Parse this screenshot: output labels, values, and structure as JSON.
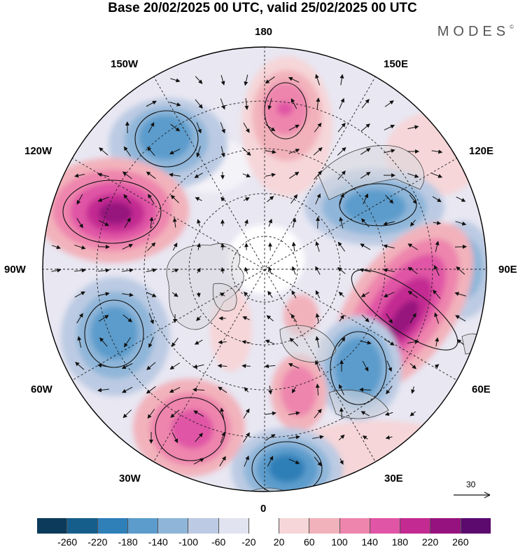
{
  "header": {
    "title": "Base 20/02/2025 00 UTC, valid 25/02/2025 00 UTC",
    "brand": "MODES"
  },
  "longitude_labels": {
    "top": "180",
    "bottom": "0",
    "left": "90W",
    "right": "90E",
    "tl1": "150W",
    "tl2": "120W",
    "tr1": "150E",
    "tr2": "120E",
    "bl1": "60W",
    "bl2": "30W",
    "br1": "60E",
    "br2": "30E"
  },
  "reference_vector": {
    "label": "30"
  },
  "colorbar": {
    "colors": [
      "#0b3a5a",
      "#155e8c",
      "#2f7fb8",
      "#5b9ccc",
      "#8fb6d9",
      "#bccbe3",
      "#e2e3f0",
      "#ffffff",
      "#f6d6d8",
      "#f2b2bb",
      "#ee85ad",
      "#e055a5",
      "#c32a92",
      "#96127e",
      "#5c0a6e"
    ],
    "ticks": [
      "-260",
      "-220",
      "-180",
      "-140",
      "-100",
      "-60",
      "-20",
      "20",
      "60",
      "100",
      "140",
      "180",
      "220",
      "260"
    ]
  },
  "anomaly_centers": [
    {
      "name": "neg-150W",
      "sign": "negative",
      "magnitude": 180
    },
    {
      "name": "pos-180",
      "sign": "positive",
      "magnitude": 140
    },
    {
      "name": "pos-120W",
      "sign": "positive",
      "magnitude": 220
    },
    {
      "name": "neg-120E",
      "sign": "negative",
      "magnitude": 140
    },
    {
      "name": "neg-90E",
      "sign": "negative",
      "magnitude": 100
    },
    {
      "name": "pos-60E",
      "sign": "positive",
      "magnitude": 220
    },
    {
      "name": "neg-45E",
      "sign": "negative",
      "magnitude": 140
    },
    {
      "name": "pos-20E",
      "sign": "positive",
      "magnitude": 140
    },
    {
      "name": "neg-0",
      "sign": "negative",
      "magnitude": 180
    },
    {
      "name": "pos-30W",
      "sign": "positive",
      "magnitude": 140
    },
    {
      "name": "neg-60W",
      "sign": "negative",
      "magnitude": 140
    },
    {
      "name": "pos-20W",
      "sign": "positive",
      "magnitude": 60
    }
  ]
}
